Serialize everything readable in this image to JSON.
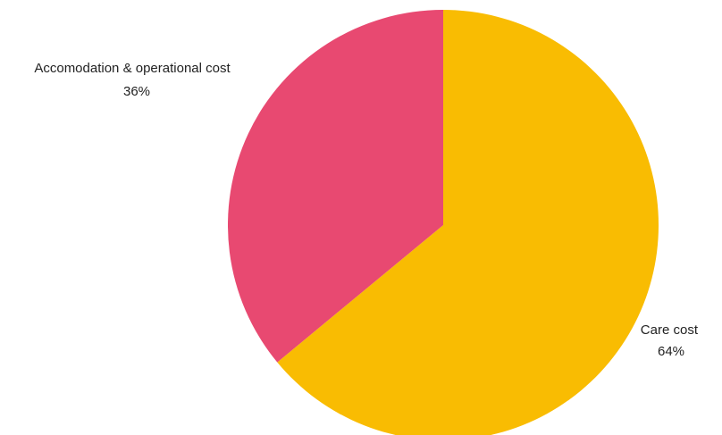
{
  "chart_data": {
    "type": "pie",
    "slices": [
      {
        "label": "Care cost",
        "value": 64,
        "value_label": "64%",
        "color": "#F9BC02"
      },
      {
        "label": "Accomodation & operational cost",
        "value": 36,
        "value_label": "36%",
        "color": "#E84971"
      }
    ],
    "start_angle_deg": 0,
    "direction": "clockwise",
    "legend": "none"
  }
}
